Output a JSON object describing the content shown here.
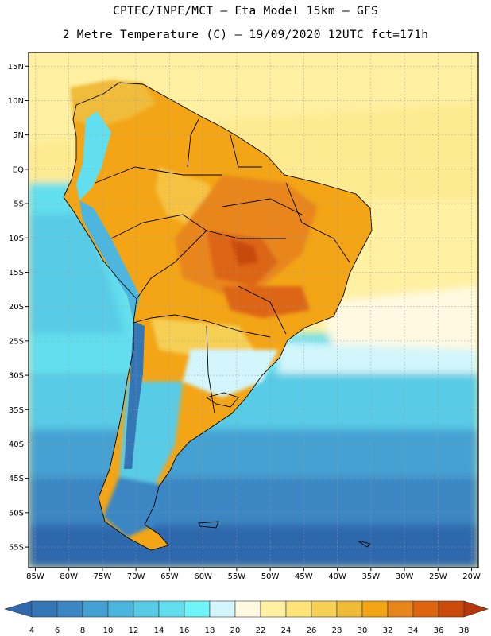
{
  "header": {
    "line1": "CPTEC/INPE/MCT –  Eta Model 15km – GFS",
    "line2": "2 Metre Temperature (C) – 19/09/2020 12UTC fct=171h"
  },
  "map": {
    "lat_labels": [
      "15N",
      "10N",
      "5N",
      "EQ",
      "5S",
      "10S",
      "15S",
      "20S",
      "25S",
      "30S",
      "35S",
      "40S",
      "45S",
      "50S",
      "55S"
    ],
    "lon_labels": [
      "85W",
      "80W",
      "75W",
      "70W",
      "65W",
      "60W",
      "55W",
      "50W",
      "45W",
      "40W",
      "35W",
      "30W",
      "25W",
      "20W"
    ],
    "extent": {
      "lon_west": -86,
      "lon_east": -19,
      "lat_north": 17,
      "lat_south": -58
    }
  },
  "legend": {
    "labels": [
      "4",
      "6",
      "8",
      "10",
      "12",
      "14",
      "16",
      "18",
      "20",
      "22",
      "24",
      "26",
      "28",
      "30",
      "32",
      "34",
      "36",
      "38"
    ],
    "colors": [
      "#2f68ac",
      "#3476b6",
      "#3b86c3",
      "#44a1d2",
      "#4cb6de",
      "#58cbe6",
      "#62dfee",
      "#6ef4f6",
      "#d2f6fb",
      "#fff9e1",
      "#fff0a2",
      "#fde37a",
      "#f6cf54",
      "#efbc3a",
      "#f3a516",
      "#e8861e",
      "#dd6512",
      "#c94a0a",
      "#b6360b"
    ]
  }
}
